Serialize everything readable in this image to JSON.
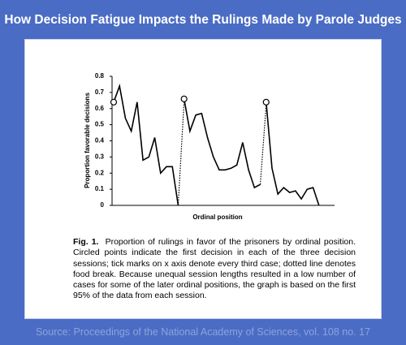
{
  "title": "How Decision Fatigue Impacts the Rulings Made by Parole Judges",
  "chart_data": {
    "type": "line",
    "ylabel": "Proportion favorable decisions",
    "xlabel": "Ordinal position",
    "color": "#000000",
    "sessions": [
      {
        "x": [
          1,
          2,
          3,
          4,
          5,
          6,
          7,
          8,
          9,
          10,
          11,
          12
        ],
        "values": [
          0.64,
          0.74,
          0.54,
          0.46,
          0.64,
          0.28,
          0.3,
          0.42,
          0.2,
          0.24,
          0.24,
          0
        ]
      },
      {
        "x": [
          13,
          14,
          15,
          16,
          17,
          18,
          19,
          20,
          21,
          22,
          23,
          24,
          25,
          26
        ],
        "values": [
          0.66,
          0.46,
          0.56,
          0.57,
          0.42,
          0.3,
          0.22,
          0.22,
          0.23,
          0.25,
          0.39,
          0.22,
          0.11,
          0.13
        ]
      },
      {
        "x": [
          27,
          28,
          29,
          30,
          31,
          32,
          33,
          34,
          35,
          36
        ],
        "values": [
          0.64,
          0.23,
          0.07,
          0.11,
          0.08,
          0.09,
          0.04,
          0.1,
          0.11,
          0
        ]
      }
    ],
    "xlim": [
      1,
      37
    ],
    "ylim": [
      0,
      0.8
    ],
    "yticks": [
      0,
      0.1,
      0.2,
      0.3,
      0.4,
      0.5,
      0.6,
      0.7,
      0.8
    ],
    "grid": false
  },
  "caption": {
    "label": "Fig. 1.",
    "text": "Proportion of rulings in favor of the prisoners by ordinal position. Circled points indicate the first decision in each of the three decision sessions; tick marks on x axis denote every third case; dotted line denotes food break. Because unequal session lengths resulted in a low number of cases for some of the later ordinal positions, the graph is based on the first 95% of the data from each session."
  },
  "source": "Source: Proceedings of the National Academy of Sciences, vol. 108 no. 17"
}
